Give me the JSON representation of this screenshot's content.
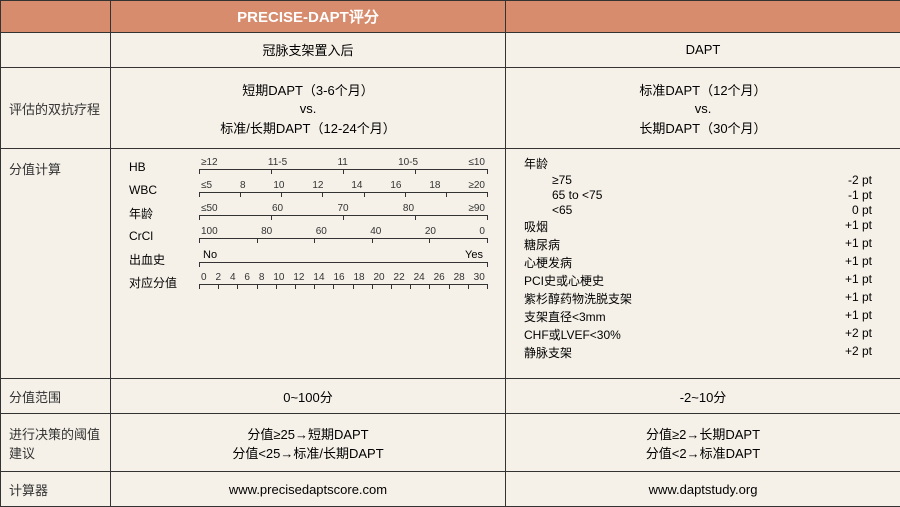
{
  "headers": {
    "col1": "PRECISE-DAPT评分",
    "col2": " "
  },
  "row_timing": {
    "label": " ",
    "col1": "冠脉支架置入后",
    "col2": "DAPT "
  },
  "row_duration": {
    "label": "评估的双抗疗程",
    "col1_a": "短期DAPT（3-6个月）",
    "vs": "vs.",
    "col1_b": "标准/长期DAPT（12-24个月）",
    "col2_a": "标准DAPT（12个月）",
    "col2_b": "长期DAPT（30个月）"
  },
  "row_calc": {
    "label": "分值计算",
    "scales": [
      {
        "name": "HB",
        "ticks": [
          "≥12",
          "11-5",
          "11",
          "10-5",
          "≤10"
        ]
      },
      {
        "name": "WBC",
        "ticks": [
          "≤5",
          "8",
          "10",
          "12",
          "14",
          "16",
          "18",
          "≥20"
        ]
      },
      {
        "name": "年龄",
        "ticks": [
          "≤50",
          "60",
          "70",
          "80",
          "≥90"
        ]
      },
      {
        "name": "CrCl",
        "ticks": [
          "100",
          "80",
          "60",
          "40",
          "20",
          "0"
        ]
      },
      {
        "name": "出血史",
        "ticks": [],
        "noyes": true,
        "no": "No",
        "yes": "Yes"
      },
      {
        "name": "对应分值",
        "ticks": [
          "0",
          "2",
          "4",
          "6",
          "8",
          "10",
          "12",
          "14",
          "16",
          "18",
          "20",
          "22",
          "24",
          "26",
          "28",
          "30"
        ]
      }
    ],
    "factors_header": "年龄",
    "factors_age": [
      {
        "label": "≥75",
        "pts": "-2 pt"
      },
      {
        "label": "65 to <75",
        "pts": "-1 pt"
      },
      {
        "label": "<65",
        "pts": "0 pt"
      }
    ],
    "factors_rest": [
      {
        "label": "吸烟",
        "pts": "+1 pt"
      },
      {
        "label": "糖尿病",
        "pts": "+1 pt"
      },
      {
        "label": "心梗发病",
        "pts": "+1 pt"
      },
      {
        "label": "PCI史或心梗史",
        "pts": "+1 pt"
      },
      {
        "label": "紫杉醇药物洗脱支架",
        "pts": "+1 pt"
      },
      {
        "label": "支架直径<3mm",
        "pts": "+1 pt"
      },
      {
        "label": "CHF或LVEF<30%",
        "pts": "+2 pt"
      },
      {
        "label": "静脉支架",
        "pts": "+2 pt"
      }
    ]
  },
  "row_range": {
    "label": "分值范围",
    "col1": "0~100分",
    "col2": "-2~10分"
  },
  "row_threshold": {
    "label": "进行决策的阈值建议",
    "col1_a": "分值≥25→短期DAPT",
    "col1_b": "分值<25→标准/长期DAPT",
    "col2_a": "分值≥2→长期DAPT",
    "col2_b": "分值<2→标准DAPT"
  },
  "row_calculator": {
    "label": "计算器",
    "col1": "www.precisedaptscore.com",
    "col2": "www.daptstudy.org"
  },
  "style": {
    "header_bg": "#d88c6e",
    "header_fg": "#ffffff",
    "body_bg": "#f5f1e8",
    "shaded_bg": "#f0e0d0",
    "border": "#333333",
    "font_main": 12,
    "font_header": 15
  }
}
